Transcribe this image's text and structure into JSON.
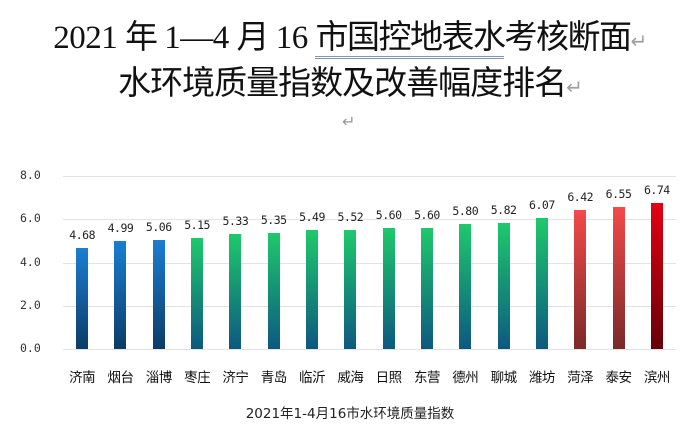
{
  "header": {
    "title_line1_prefix": "2021 年 1—4 月 16 ",
    "title_line1_underlined": "市国控地表水",
    "title_line1_suffix": "考核断面",
    "title_line2": "水环境质量指数及改善幅度排名",
    "paragraph_mark": "↵",
    "underline_color": "#7f95b0"
  },
  "colors": {
    "blue_top": "#1a7ed2",
    "blue_bottom": "#0c3c68",
    "green_top": "#1ec96b",
    "green_bottom": "#0d5880",
    "red_top": "#f44a4a",
    "red_bottom": "#7a2a2a",
    "darkred_top": "#e30012",
    "darkred_bottom": "#660008",
    "grid": "#e3e3e3"
  },
  "chart_data": {
    "type": "bar",
    "title": "2021年1-4月16市水环境质量指数",
    "xlabel": "",
    "ylabel": "",
    "ylim": [
      0,
      8
    ],
    "yticks": [
      "0.0",
      "2.0",
      "4.0",
      "6.0",
      "8.0"
    ],
    "grid": true,
    "legend": null,
    "categories": [
      "济南",
      "烟台",
      "淄博",
      "枣庄",
      "济宁",
      "青岛",
      "临沂",
      "威海",
      "日照",
      "东营",
      "德州",
      "聊城",
      "潍坊",
      "菏泽",
      "泰安",
      "滨州"
    ],
    "values": [
      4.68,
      4.99,
      5.06,
      5.15,
      5.33,
      5.35,
      5.49,
      5.52,
      5.6,
      5.6,
      5.8,
      5.82,
      6.07,
      6.42,
      6.55,
      6.74
    ],
    "value_labels": [
      "4.68",
      "4.99",
      "5.06",
      "5.15",
      "5.33",
      "5.35",
      "5.49",
      "5.52",
      "5.60",
      "5.60",
      "5.80",
      "5.82",
      "6.07",
      "6.42",
      "6.55",
      "6.74"
    ],
    "bar_color_groups": [
      "blue",
      "blue",
      "blue",
      "green",
      "green",
      "green",
      "green",
      "green",
      "green",
      "green",
      "green",
      "green",
      "green",
      "red",
      "red",
      "darkred"
    ]
  }
}
